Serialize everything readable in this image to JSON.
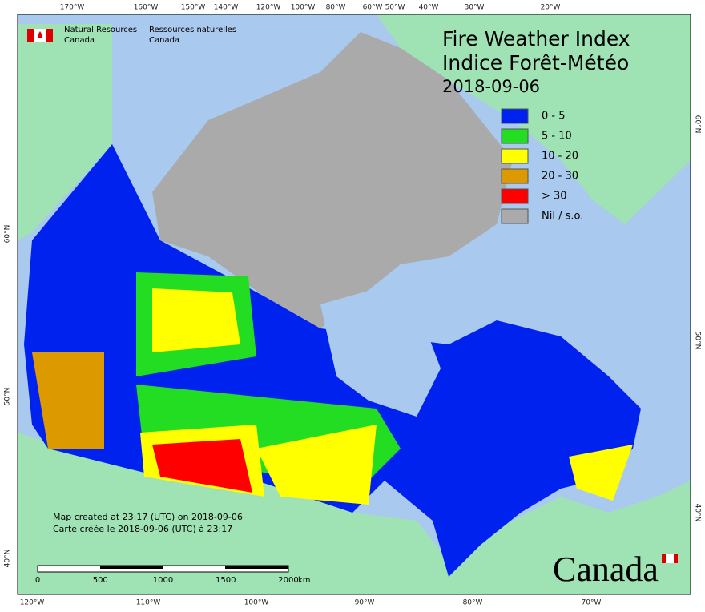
{
  "header": {
    "agency_en": "Natural Resources",
    "country_en": "Canada",
    "agency_fr": "Ressources naturelles",
    "country_fr": "Canada"
  },
  "title": {
    "line1": "Fire Weather Index",
    "line2": "Indice Forêt-Météo",
    "date": "2018-09-06"
  },
  "legend": [
    {
      "label": "0 - 5",
      "color": "#0022ee"
    },
    {
      "label": "5 - 10",
      "color": "#22dd22"
    },
    {
      "label": "10 - 20",
      "color": "#ffff00"
    },
    {
      "label": "20 - 30",
      "color": "#dd9900"
    },
    {
      "label": "> 30",
      "color": "#ff0000"
    },
    {
      "label": "Nil / s.o.",
      "color": "#aaaaaa"
    }
  ],
  "graticule": {
    "top": [
      "170°W",
      "160°W",
      "150°W",
      "140°W",
      "120°W",
      "100°W",
      "80°W",
      "60°W",
      "50°W",
      "40°W",
      "30°W",
      "20°W"
    ],
    "bottom": [
      "120°W",
      "110°W",
      "100°W",
      "90°W",
      "80°W",
      "70°W"
    ],
    "left": [
      "60°N",
      "50°N",
      "40°N"
    ],
    "right": [
      "60°N",
      "50°N",
      "40°N"
    ]
  },
  "footer": {
    "created_en": "Map created at 23:17 (UTC) on 2018-09-06",
    "created_fr": "Carte créée le 2018-09-06 (UTC) à 23:17"
  },
  "scale_bar": {
    "ticks": [
      "0",
      "500",
      "1000",
      "1500",
      "2000"
    ],
    "unit": "km"
  },
  "wordmark": "Canada"
}
